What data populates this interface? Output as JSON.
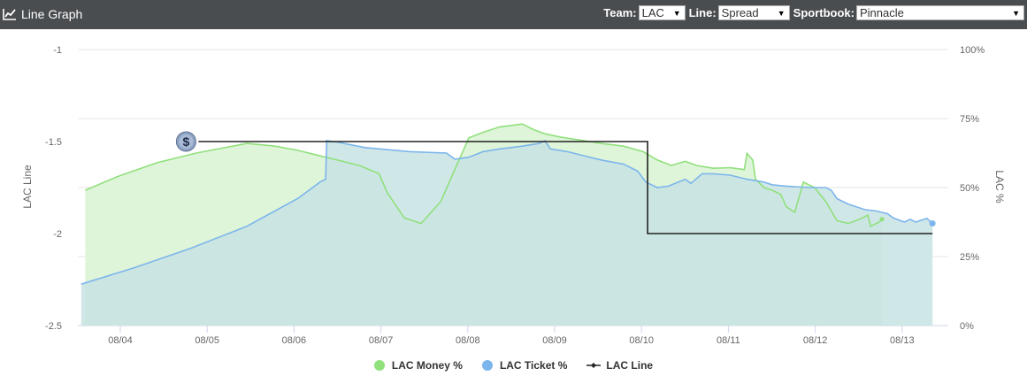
{
  "header": {
    "title": "Line Graph",
    "icon": "line-chart-icon",
    "team_label": "Team:",
    "team_value": "LAC",
    "line_label": "Line:",
    "line_value": "Spread",
    "book_label": "Sportbook:",
    "book_value": "Pinnacle"
  },
  "colors": {
    "header_bg": "#4a4d50",
    "money": "#90e07c",
    "money_fill": "#dff5d9",
    "ticket": "#7cb5ec",
    "ticket_fill": "#c8e3e3",
    "line": "#222222"
  },
  "chart_data": {
    "type": "line",
    "x_categories": [
      "08/04",
      "08/05",
      "08/06",
      "08/07",
      "08/08",
      "08/09",
      "08/10",
      "08/11",
      "08/12",
      "08/13"
    ],
    "xlabel": "",
    "left_axis": {
      "title": "LAC Line",
      "ticks": [
        "-1",
        "-1.5",
        "-2",
        "-2.5"
      ],
      "range": [
        -2.5,
        -1
      ]
    },
    "right_axis": {
      "title": "LAC %",
      "ticks": [
        "100%",
        "75%",
        "50%",
        "25%",
        "0%"
      ],
      "range": [
        0,
        100
      ]
    },
    "x_range_days": [
      -0.45,
      9.35
    ],
    "series": [
      {
        "name": "LAC Money %",
        "axis": "right",
        "points": [
          [
            -0.38,
            49
          ],
          [
            0.2,
            54
          ],
          [
            0.9,
            59
          ],
          [
            1.6,
            62.5
          ],
          [
            2.5,
            66
          ],
          [
            3.0,
            65
          ],
          [
            3.4,
            63.5
          ],
          [
            3.9,
            61
          ],
          [
            4.5,
            58
          ],
          [
            4.85,
            55
          ],
          [
            5.0,
            48
          ],
          [
            5.3,
            39
          ],
          [
            5.6,
            37
          ],
          [
            5.95,
            45
          ],
          [
            6.1,
            52
          ],
          [
            6.45,
            68
          ],
          [
            6.7,
            70
          ],
          [
            7.0,
            72
          ],
          [
            7.4,
            73
          ],
          [
            7.6,
            71
          ],
          [
            7.8,
            69.5
          ],
          [
            8.1,
            68.2
          ],
          [
            8.5,
            67
          ],
          [
            8.8,
            66
          ],
          [
            9.2,
            65
          ],
          [
            9.55,
            63
          ],
          [
            9.8,
            60
          ],
          [
            10.05,
            58
          ],
          [
            10.3,
            59.5
          ],
          [
            10.5,
            58
          ],
          [
            10.8,
            57
          ],
          [
            11.1,
            57.2
          ],
          [
            11.35,
            56.5
          ],
          [
            11.4,
            62.4
          ],
          [
            11.5,
            60
          ],
          [
            11.55,
            53
          ],
          [
            11.7,
            50
          ],
          [
            11.85,
            49
          ],
          [
            12.0,
            47.5
          ],
          [
            12.1,
            43
          ],
          [
            12.25,
            41
          ],
          [
            12.4,
            52
          ],
          [
            12.6,
            50
          ],
          [
            12.8,
            45
          ],
          [
            13.0,
            38
          ],
          [
            13.2,
            37
          ],
          [
            13.4,
            38.5
          ],
          [
            13.55,
            40
          ],
          [
            13.6,
            36
          ],
          [
            13.75,
            37.5
          ],
          [
            13.8,
            38.5
          ]
        ]
      },
      {
        "name": "LAC Ticket %",
        "axis": "right",
        "points": [
          [
            -0.45,
            15
          ],
          [
            0.5,
            21
          ],
          [
            1.5,
            28
          ],
          [
            2.5,
            36
          ],
          [
            3.4,
            46
          ],
          [
            3.8,
            52
          ],
          [
            3.9,
            53
          ],
          [
            3.92,
            67
          ],
          [
            4.1,
            66.5
          ],
          [
            4.6,
            64.5
          ],
          [
            5.4,
            63
          ],
          [
            6.05,
            62.5
          ],
          [
            6.2,
            60.3
          ],
          [
            6.45,
            61
          ],
          [
            6.7,
            63
          ],
          [
            7.0,
            64
          ],
          [
            7.4,
            65
          ],
          [
            7.7,
            66
          ],
          [
            7.8,
            67
          ],
          [
            7.9,
            64
          ],
          [
            8.2,
            63
          ],
          [
            8.5,
            61.5
          ],
          [
            8.8,
            60
          ],
          [
            9.2,
            58.5
          ],
          [
            9.45,
            56
          ],
          [
            9.6,
            52
          ],
          [
            9.8,
            50
          ],
          [
            10.0,
            50.5
          ],
          [
            10.3,
            53
          ],
          [
            10.4,
            51.5
          ],
          [
            10.6,
            55
          ],
          [
            10.8,
            55
          ],
          [
            11.1,
            54.5
          ],
          [
            11.4,
            53
          ],
          [
            11.7,
            52
          ],
          [
            11.85,
            51
          ],
          [
            12.1,
            50.5
          ],
          [
            12.5,
            50
          ],
          [
            12.8,
            50
          ],
          [
            12.9,
            49
          ],
          [
            13.0,
            46
          ],
          [
            13.1,
            45
          ],
          [
            13.2,
            44
          ],
          [
            13.5,
            42
          ],
          [
            13.7,
            41.5
          ],
          [
            13.9,
            40.5
          ],
          [
            14.0,
            39
          ],
          [
            14.2,
            37.5
          ],
          [
            14.3,
            38.5
          ],
          [
            14.4,
            37.5
          ],
          [
            14.6,
            38.8
          ],
          [
            14.7,
            37
          ]
        ]
      },
      {
        "name": "LAC Line",
        "axis": "left",
        "points": [
          [
            0.9,
            -1.5
          ],
          [
            6.07,
            -1.5
          ],
          [
            6.07,
            -2
          ],
          [
            9.35,
            -2
          ]
        ]
      }
    ],
    "grid": true,
    "legend": "bottom-center"
  }
}
